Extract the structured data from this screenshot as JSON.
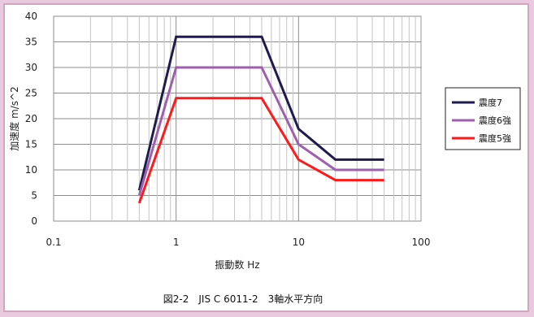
{
  "chart_data": {
    "type": "line",
    "title": "",
    "caption": "図2-2　JIS C 6011-2　3軸水平方向",
    "xlabel": "振動数 Hz",
    "ylabel": "加速度 m/s^2",
    "x_scale": "log",
    "xlim": [
      0.1,
      100
    ],
    "ylim": [
      0,
      40
    ],
    "x_ticks": [
      "0.1",
      "1",
      "10",
      "100"
    ],
    "y_ticks": [
      "0",
      "5",
      "10",
      "15",
      "20",
      "25",
      "30",
      "35",
      "40"
    ],
    "grid": true,
    "legend_position": "right",
    "series": [
      {
        "name": "震度7",
        "color": "#1f1b4d",
        "points": [
          [
            0.5,
            6
          ],
          [
            1,
            36
          ],
          [
            5,
            36
          ],
          [
            10,
            18
          ],
          [
            20,
            12
          ],
          [
            50,
            12
          ]
        ]
      },
      {
        "name": "震度6強",
        "color": "#a05fae",
        "points": [
          [
            0.5,
            5
          ],
          [
            1,
            30
          ],
          [
            5,
            30
          ],
          [
            10,
            15
          ],
          [
            20,
            10
          ],
          [
            50,
            10
          ]
        ]
      },
      {
        "name": "震度5強",
        "color": "#ff1a1a",
        "points": [
          [
            0.5,
            3.5
          ],
          [
            1,
            24
          ],
          [
            5,
            24
          ],
          [
            10,
            12
          ],
          [
            20,
            8
          ],
          [
            50,
            8
          ]
        ]
      }
    ]
  }
}
